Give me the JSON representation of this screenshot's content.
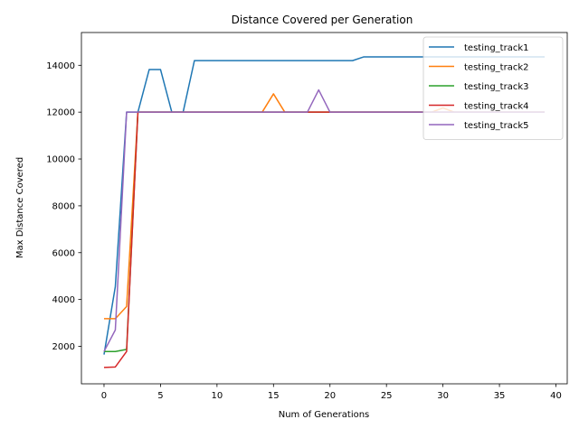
{
  "chart_data": {
    "type": "line",
    "title": "Distance Covered per Generation",
    "xlabel": "Num of Generations",
    "ylabel": "Max Distance Covered",
    "xlim": [
      -2,
      41
    ],
    "ylim": [
      400,
      15400
    ],
    "xticks": [
      0,
      5,
      10,
      15,
      20,
      25,
      30,
      35,
      40
    ],
    "yticks": [
      2000,
      4000,
      6000,
      8000,
      10000,
      12000,
      14000
    ],
    "grid": false,
    "legend_position": "top-right",
    "x": [
      0,
      1,
      2,
      3,
      4,
      5,
      6,
      7,
      8,
      9,
      10,
      11,
      12,
      13,
      14,
      15,
      16,
      17,
      18,
      19,
      20,
      21,
      22,
      23,
      24,
      25,
      26,
      27,
      28,
      29,
      30,
      31,
      32,
      33,
      34,
      35,
      36,
      37,
      38,
      39
    ],
    "series": [
      {
        "name": "testing_track1",
        "color": "#1f77b4",
        "values": [
          1650,
          4550,
          12000,
          12000,
          13820,
          13820,
          12000,
          12000,
          14200,
          14200,
          14200,
          14200,
          14200,
          14200,
          14200,
          14200,
          14200,
          14200,
          14200,
          14200,
          14200,
          14200,
          14200,
          14360,
          14360,
          14360,
          14360,
          14360,
          14360,
          14360,
          14360,
          14360,
          14360,
          14360,
          14360,
          14360,
          14360,
          14360,
          14360,
          14360
        ]
      },
      {
        "name": "testing_track2",
        "color": "#ff7f0e",
        "values": [
          3180,
          3180,
          3700,
          12000,
          12000,
          12000,
          12000,
          12000,
          12000,
          12000,
          12000,
          12000,
          12000,
          12000,
          12000,
          12780,
          12000,
          12000,
          12000,
          12000,
          12000,
          12000,
          12000,
          12000,
          12000,
          12000,
          12000,
          12000,
          12000,
          12000,
          12180,
          12000,
          12000,
          12000,
          12000,
          12000,
          12000,
          12000,
          12000,
          12000
        ]
      },
      {
        "name": "testing_track3",
        "color": "#2ca02c",
        "values": [
          1780,
          1780,
          1870,
          12000,
          12000,
          12000,
          12000,
          12000,
          12000,
          12000,
          12000,
          12000,
          12000,
          12000,
          12000,
          12000,
          12000,
          12000,
          12000,
          12000,
          12000,
          12000,
          12000,
          12000,
          12000,
          12000,
          12000,
          12000,
          12000,
          12000,
          12000,
          12000,
          12000,
          12000,
          12000,
          12000,
          12000,
          12000,
          12000,
          12000
        ]
      },
      {
        "name": "testing_track4",
        "color": "#d62728",
        "values": [
          1100,
          1120,
          1780,
          12000,
          12000,
          12000,
          12000,
          12000,
          12000,
          12000,
          12000,
          12000,
          12000,
          12000,
          12000,
          12000,
          12000,
          12000,
          12000,
          12000,
          12000,
          12000,
          12000,
          12000,
          12000,
          12000,
          12000,
          12000,
          12000,
          12000,
          12000,
          12000,
          12000,
          12000,
          12000,
          12000,
          12000,
          12000,
          12000,
          12000
        ]
      },
      {
        "name": "testing_track5",
        "color": "#9467bd",
        "values": [
          1780,
          2700,
          12000,
          12000,
          12000,
          12000,
          12000,
          12000,
          12000,
          12000,
          12000,
          12000,
          12000,
          12000,
          12000,
          12000,
          12000,
          12000,
          12000,
          12950,
          12000,
          12000,
          12000,
          12000,
          12000,
          12000,
          12000,
          12000,
          12000,
          12000,
          12000,
          12000,
          12000,
          12000,
          12000,
          12000,
          12000,
          12000,
          12000,
          12000
        ]
      }
    ]
  }
}
